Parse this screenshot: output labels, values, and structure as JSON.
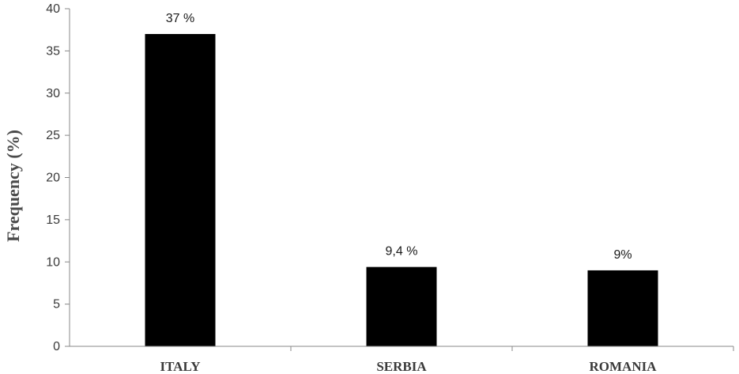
{
  "chart_data": {
    "type": "bar",
    "categories": [
      "ITALY",
      "SERBIA",
      "ROMANIA"
    ],
    "values": [
      37,
      9.4,
      9
    ],
    "data_labels": [
      "37 %",
      "9,4 %",
      "9%"
    ],
    "title": "",
    "xlabel": "",
    "ylabel": "Frequency (%)",
    "ylim": [
      0,
      40
    ],
    "yticks": [
      0,
      5,
      10,
      15,
      20,
      25,
      30,
      35,
      40
    ],
    "grid": false,
    "bar_color": "#000000",
    "axis_color": "#888888"
  }
}
